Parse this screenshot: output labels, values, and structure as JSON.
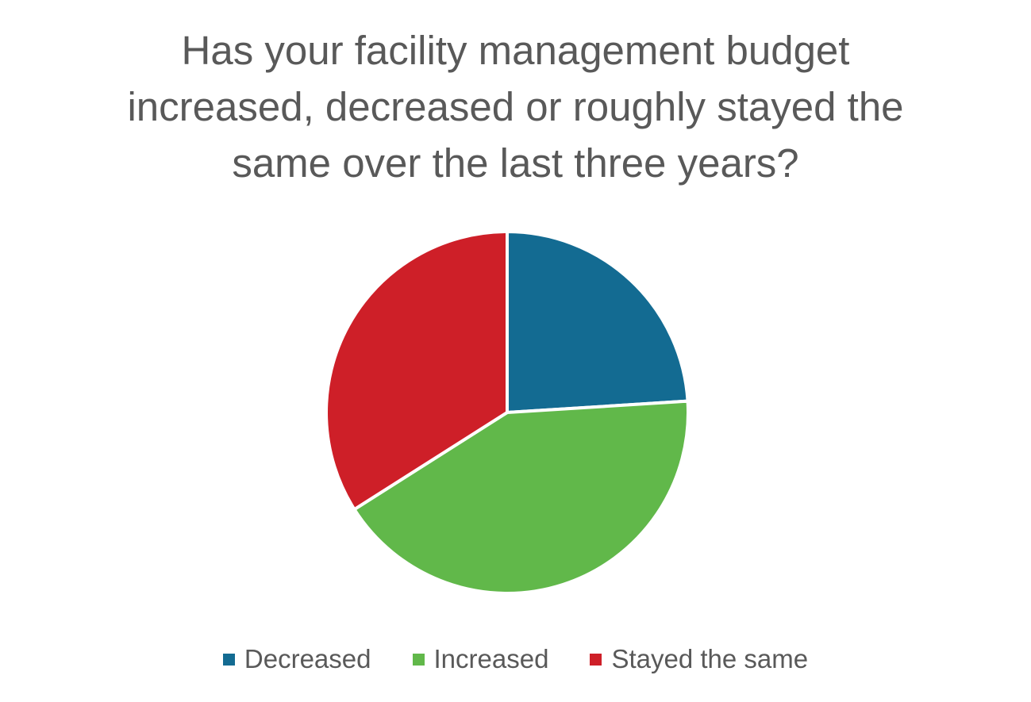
{
  "chart_data": {
    "type": "pie",
    "title_lines": [
      "Has your facility management budget",
      "increased, decreased or roughly stayed the",
      "same over the last three years?"
    ],
    "slices": [
      {
        "label": "Decreased",
        "value": 24,
        "color": "#136B92"
      },
      {
        "label": "Increased",
        "value": 42,
        "color": "#61B84A"
      },
      {
        "label": "Stayed the same",
        "value": 34,
        "color": "#CE1F28"
      }
    ],
    "start_angle_deg": 0,
    "direction": "clockwise",
    "legend_position": "bottom"
  }
}
